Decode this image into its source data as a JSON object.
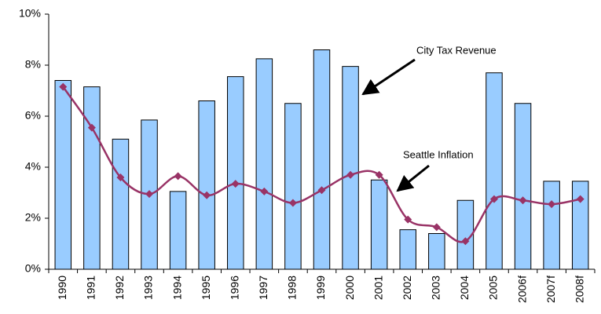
{
  "chart_data": {
    "type": "bar_line",
    "categories": [
      "1990",
      "1991",
      "1992",
      "1993",
      "1994",
      "1995",
      "1996",
      "1997",
      "1998",
      "1999",
      "2000",
      "2001",
      "2002",
      "2003",
      "2004",
      "2005",
      "2006f",
      "2007f",
      "2008f"
    ],
    "series": [
      {
        "name": "City Tax Revenue",
        "type": "bar",
        "color": "#99ccff",
        "values": [
          7.4,
          7.15,
          5.1,
          5.85,
          3.05,
          6.6,
          7.55,
          8.25,
          6.5,
          8.6,
          7.95,
          3.5,
          1.55,
          1.4,
          2.7,
          7.7,
          6.5,
          3.45,
          3.45
        ]
      },
      {
        "name": "Seattle Inflation",
        "type": "line",
        "color": "#993366",
        "values": [
          7.15,
          5.55,
          3.6,
          2.95,
          3.65,
          2.9,
          3.35,
          3.05,
          2.6,
          3.1,
          3.7,
          3.7,
          1.95,
          1.65,
          1.1,
          2.75,
          2.7,
          2.55,
          2.75
        ]
      }
    ],
    "ylim": [
      0,
      10
    ],
    "yticks": [
      {
        "value": 0,
        "label": "0%"
      },
      {
        "value": 2,
        "label": "2%"
      },
      {
        "value": 4,
        "label": "4%"
      },
      {
        "value": 6,
        "label": "6%"
      },
      {
        "value": 8,
        "label": "8%"
      },
      {
        "value": 10,
        "label": "10%"
      }
    ],
    "grid": false
  }
}
